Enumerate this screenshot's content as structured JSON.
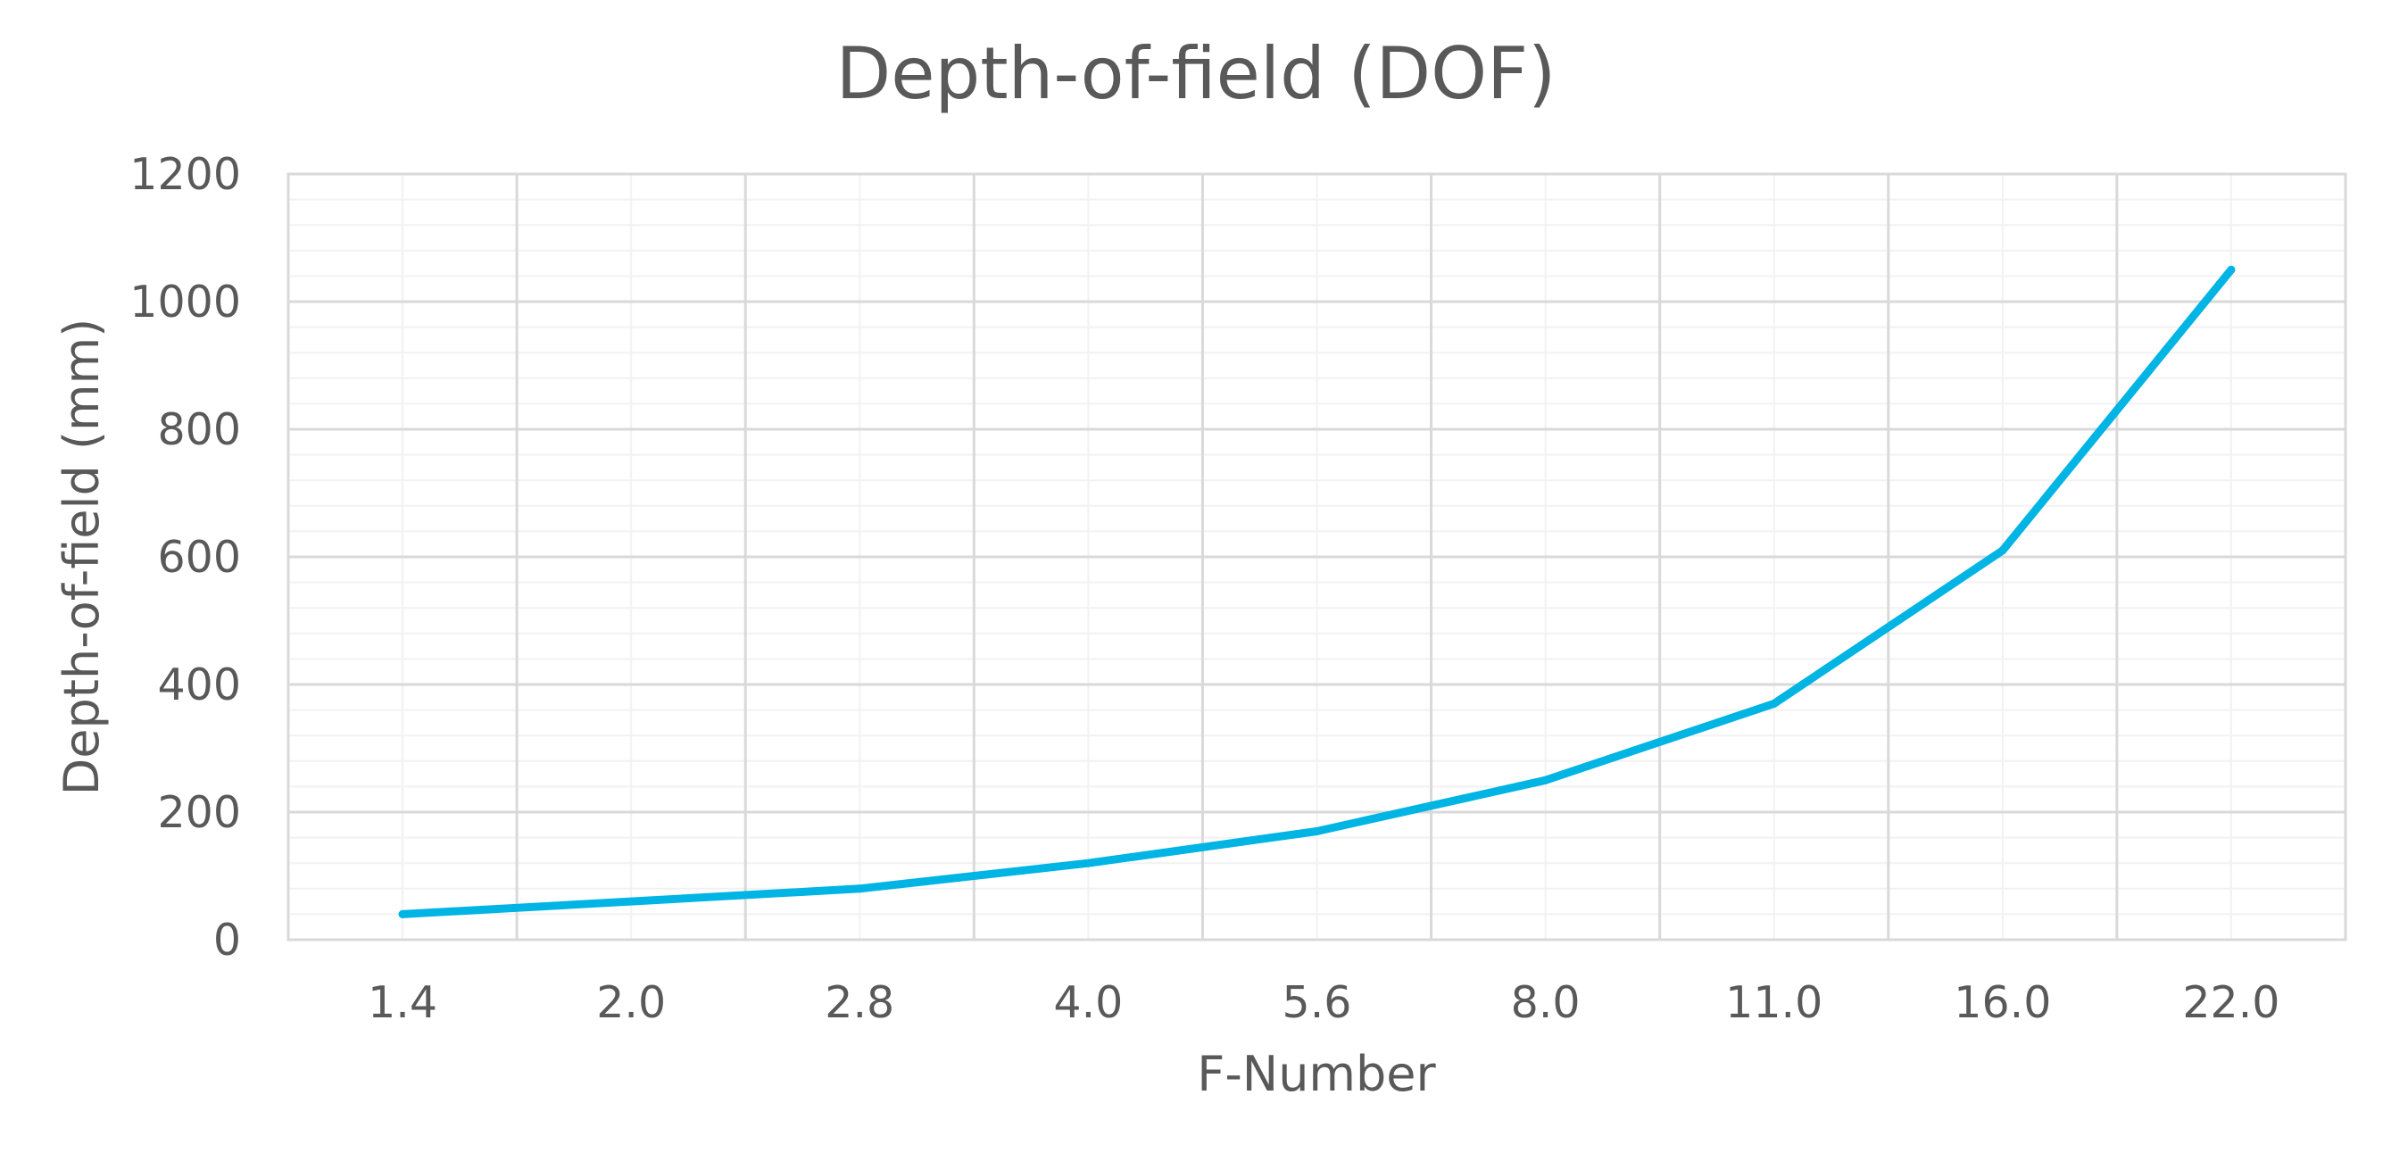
{
  "chart_data": {
    "type": "line",
    "title": "Depth-of-field (DOF)",
    "xlabel": "F-Number",
    "ylabel": "Depth-of-field (mm)",
    "categories": [
      "1.4",
      "2.0",
      "2.8",
      "4.0",
      "5.6",
      "8.0",
      "11.0",
      "16.0",
      "22.0"
    ],
    "series": [
      {
        "values": [
          40,
          60,
          80,
          120,
          170,
          250,
          370,
          610,
          1050
        ]
      }
    ],
    "ylim": [
      0,
      1200
    ],
    "yticks": [
      0,
      200,
      400,
      600,
      800,
      1000,
      1200
    ],
    "grid": true,
    "line_color": "#00B4E3"
  }
}
